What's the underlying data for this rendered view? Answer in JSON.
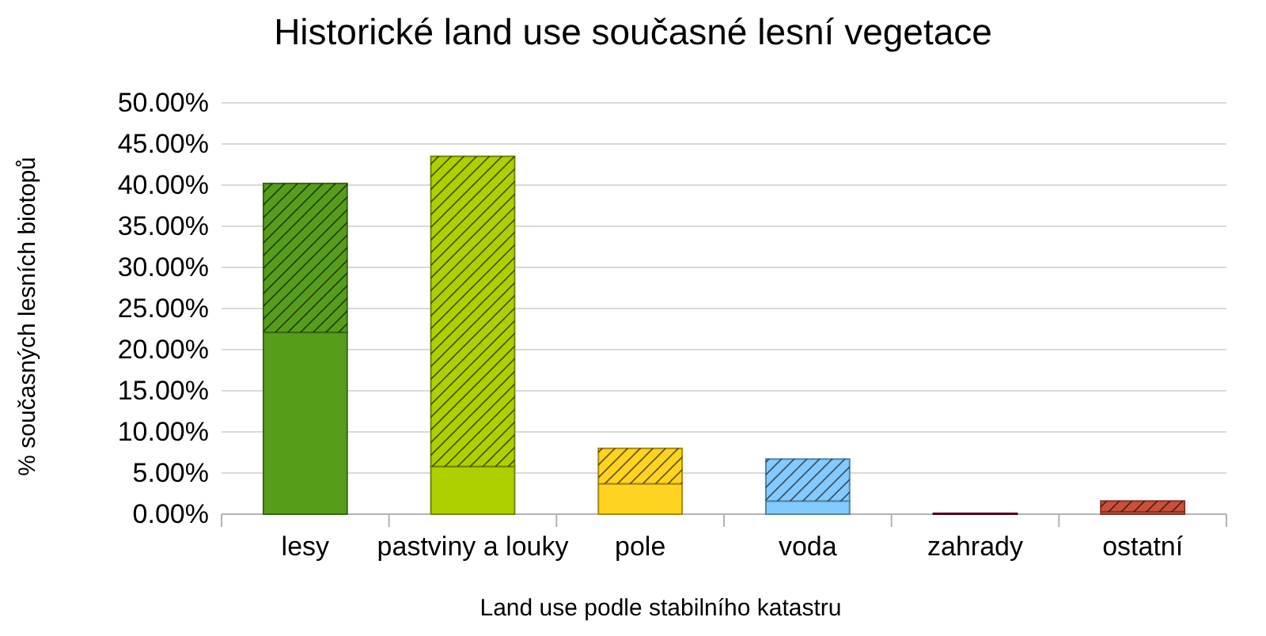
{
  "chart_data": {
    "type": "bar",
    "title": "Historické land use současné lesní vegetace",
    "xlabel": "Land use podle stabilního katastru",
    "ylabel": "% současných lesních biotopů",
    "categories": [
      "lesy",
      "pastviny a louky",
      "pole",
      "voda",
      "zahrady",
      "ostatní"
    ],
    "stacked": true,
    "series": [
      {
        "colors": [
          "#579d1c",
          "#aecf00",
          "#ffd320",
          "#83caff",
          "#7e0021",
          "#c9513a"
        ],
        "values": [
          22.1,
          5.8,
          3.7,
          1.6,
          0.1,
          0.3
        ]
      },
      {
        "colors": [
          "#579d1c",
          "#aecf00",
          "#ffd320",
          "#83caff",
          null,
          "#c9513a"
        ],
        "values": [
          18.1,
          37.7,
          4.3,
          5.1,
          null,
          1.3
        ]
      }
    ],
    "ylim": [
      0,
      50
    ],
    "yticks": [
      {
        "value": 0,
        "label": "0.00%"
      },
      {
        "value": 5,
        "label": "5.00%"
      },
      {
        "value": 10,
        "label": "10.00%"
      },
      {
        "value": 15,
        "label": "15.00%"
      },
      {
        "value": 20,
        "label": "20.00%"
      },
      {
        "value": 25,
        "label": "25.00%"
      },
      {
        "value": 30,
        "label": "30.00%"
      },
      {
        "value": 35,
        "label": "35.00%"
      },
      {
        "value": 40,
        "label": "40.00%"
      },
      {
        "value": 45,
        "label": "45.00%"
      },
      {
        "value": 50,
        "label": "50.00%"
      }
    ],
    "grid": "y"
  }
}
